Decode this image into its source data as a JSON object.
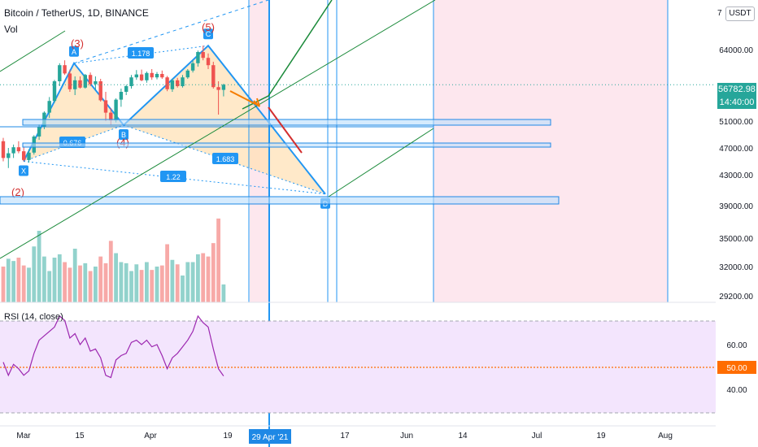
{
  "header": {
    "title": "Bitcoin / TetherUS, 1D, BINANCE",
    "vol_label": "Vol",
    "currency_badge": "USDT",
    "scale_top_label": "7"
  },
  "rsi": {
    "label": "RSI (14, close)"
  },
  "last_price": {
    "price": "56782.98",
    "countdown": "14:40:00"
  },
  "colors": {
    "up": "#26a69a",
    "down": "#ef5350",
    "pattern_line": "#2196f3",
    "pattern_fill": "#ffe0b2",
    "trend": "#1b8a3a",
    "rsi_bg": "#f3e5fd",
    "rsi_line": "#9c27b0",
    "forecast_shade": "#fde7ee",
    "price_line": "#26a69a",
    "fifty_line": "#ff6d00",
    "arrow_orange": "#f57c00",
    "arrow_red": "#d32f2f"
  },
  "chart_data": [
    {
      "type": "candlestick",
      "title": "Bitcoin / TetherUS, 1D, BINANCE",
      "y_axis_ticks": [
        64000,
        56000,
        51000,
        47000,
        43000,
        39000,
        35000,
        32000,
        29200
      ],
      "y_tick_labels": [
        "64000.00",
        "56000.00",
        "51000.00",
        "47000.00",
        "43000.00",
        "39000.00",
        "35000.00",
        "32000.00",
        "29200.00"
      ],
      "x_tick_labels": [
        "Mar",
        "15",
        "Apr",
        "19",
        "17",
        "Jun",
        "14",
        "Jul",
        "19",
        "Aug"
      ],
      "crosshair_date": "29 Apr '21",
      "last_price": 56782.98,
      "ohlc": [
        [
          48000,
          48500,
          45000,
          45500
        ],
        [
          45500,
          47000,
          44000,
          46200
        ],
        [
          46200,
          47500,
          45500,
          47100
        ],
        [
          47100,
          48000,
          46200,
          46500
        ],
        [
          46500,
          47200,
          45000,
          45200
        ],
        [
          45200,
          46800,
          44800,
          46300
        ],
        [
          46300,
          48900,
          46000,
          48700
        ],
        [
          48700,
          50500,
          48200,
          50100
        ],
        [
          50100,
          52500,
          49800,
          52300
        ],
        [
          52300,
          54700,
          51500,
          54100
        ],
        [
          54100,
          57800,
          53800,
          57500
        ],
        [
          57500,
          61200,
          56500,
          60800
        ],
        [
          60800,
          61800,
          58800,
          59100
        ],
        [
          59100,
          59900,
          55500,
          55900
        ],
        [
          55900,
          58500,
          55000,
          57700
        ],
        [
          57700,
          58500,
          56000,
          56200
        ],
        [
          56200,
          59000,
          56000,
          58800
        ],
        [
          58800,
          59300,
          56500,
          56900
        ],
        [
          56900,
          58500,
          55800,
          57500
        ],
        [
          57500,
          58000,
          54000,
          54200
        ],
        [
          54200,
          55500,
          51000,
          52300
        ],
        [
          52300,
          53000,
          50400,
          51100
        ],
        [
          51100,
          54500,
          50800,
          54300
        ],
        [
          54300,
          56000,
          53200,
          55500
        ],
        [
          55500,
          56800,
          55000,
          56500
        ],
        [
          56500,
          58800,
          56000,
          58300
        ],
        [
          58300,
          59800,
          57800,
          58900
        ],
        [
          58900,
          59900,
          57500,
          57700
        ],
        [
          57700,
          59500,
          57200,
          59200
        ],
        [
          59200,
          60000,
          57800,
          58300
        ],
        [
          58300,
          59400,
          57900,
          59000
        ],
        [
          59000,
          59700,
          58000,
          58300
        ],
        [
          58300,
          58600,
          55600,
          55900
        ],
        [
          55900,
          58000,
          55500,
          57700
        ],
        [
          57700,
          58200,
          56200,
          56500
        ],
        [
          56500,
          58800,
          56200,
          58300
        ],
        [
          58300,
          60000,
          58000,
          59700
        ],
        [
          59700,
          61800,
          59300,
          61200
        ],
        [
          61200,
          63800,
          60500,
          63500
        ],
        [
          63500,
          64800,
          61800,
          62300
        ],
        [
          62300,
          63200,
          60000,
          60800
        ],
        [
          60800,
          61500,
          56000,
          56300
        ],
        [
          56300,
          57500,
          52000,
          55800
        ],
        [
          55800,
          57000,
          54800,
          56783
        ]
      ],
      "volume_scale_max": 80,
      "volume": [
        32,
        39,
        37,
        40,
        33,
        31,
        50,
        64,
        41,
        28,
        40,
        43,
        36,
        31,
        48,
        33,
        35,
        28,
        32,
        41,
        35,
        55,
        44,
        36,
        35,
        28,
        34,
        29,
        36,
        29,
        32,
        33,
        52,
        38,
        34,
        24,
        36,
        36,
        43,
        44,
        41,
        53,
        75,
        16
      ],
      "rsi": {
        "period": 14,
        "levels": [
          70,
          50,
          30
        ],
        "y_axis_ticks": [
          60,
          50,
          40
        ],
        "y_tick_labels": [
          "60.00",
          "50.00",
          "40.00"
        ],
        "values": [
          52,
          46,
          51,
          49,
          46,
          48,
          56,
          62,
          64,
          66,
          68,
          73,
          71,
          63,
          65,
          60,
          63,
          57,
          58,
          54,
          46,
          45,
          53,
          55,
          56,
          61,
          62,
          60,
          62,
          59,
          60,
          55,
          49,
          54,
          56,
          59,
          62,
          66,
          73,
          70,
          68,
          58,
          49,
          45.7
        ]
      },
      "harmonic_pattern": {
        "points": {
          "X": 45000,
          "A": 61200,
          "B": 50400,
          "C": 64800,
          "D": 40500
        },
        "wave_labels": [
          "(2)",
          "(3)",
          "(4)",
          "(5)",
          "(2)"
        ],
        "ratios": [
          "1.178",
          "0.676",
          "1.683",
          "1.22"
        ]
      }
    }
  ]
}
